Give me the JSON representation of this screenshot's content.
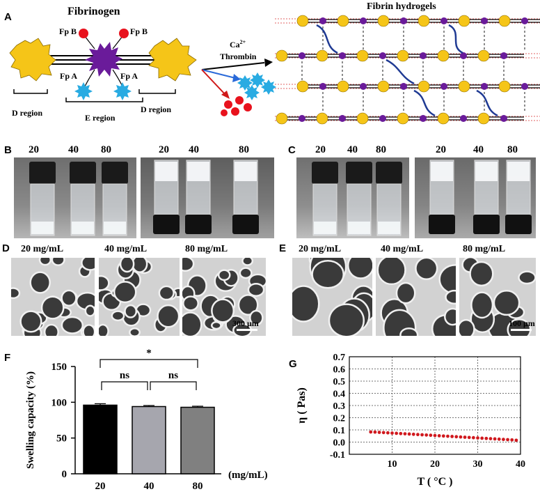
{
  "panels": {
    "A": "A",
    "B": "B",
    "C": "C",
    "D": "D",
    "E": "E",
    "F": "F",
    "G": "G"
  },
  "schematic": {
    "fibrinogen_title": "Fibrinogen",
    "fpb_left": "Fp B",
    "fpb_right": "Fp B",
    "fpa_left": "Fp A",
    "fpa_right": "Fp A",
    "d_region_left": "D region",
    "e_region": "E region",
    "d_region_right": "D region",
    "ca": "Ca",
    "ca_sup": "2+",
    "thrombin": "Thrombin",
    "hydrogel_title": "Fibrin hydrogels",
    "colors": {
      "d_domain": "#f5c518",
      "e_domain": "#6a1b9a",
      "fpb": "#e8121d",
      "fpa": "#29abe2",
      "crosslink": "#1f3a93",
      "rail": "#e06060"
    }
  },
  "vials_b": {
    "left": [
      "20",
      "40",
      "80"
    ],
    "right": [
      "20",
      "40",
      "80"
    ]
  },
  "vials_c": {
    "left": [
      "20",
      "40",
      "80"
    ],
    "right": [
      "20",
      "40",
      "80"
    ]
  },
  "sem_d": {
    "labels": [
      "20 mg/mL",
      "40 mg/mL",
      "80 mg/mL"
    ],
    "scalebar": "300 μm"
  },
  "sem_e": {
    "labels": [
      "20 mg/mL",
      "40 mg/mL",
      "80 mg/mL"
    ],
    "scalebar": "100 μm"
  },
  "chart_data": [
    {
      "type": "bar",
      "panel": "F",
      "categories": [
        "20",
        "40",
        "80"
      ],
      "values": [
        96,
        94,
        93
      ],
      "errors": [
        2,
        1.5,
        1.5
      ],
      "colors": [
        "#000000",
        "#a6a6ae",
        "#808080"
      ],
      "ylabel": "Swelling capacity (%)",
      "xunit": "(mg/mL)",
      "ylim": [
        0,
        150
      ],
      "yticks": [
        "0",
        "50",
        "100",
        "150"
      ],
      "significance": [
        {
          "from": 0,
          "to": 1,
          "label": "ns"
        },
        {
          "from": 1,
          "to": 2,
          "label": "ns"
        },
        {
          "from": 0,
          "to": 2,
          "label": "*"
        }
      ]
    },
    {
      "type": "scatter",
      "panel": "G",
      "xlabel": "T ( °C )",
      "ylabel": "η ( Pas)",
      "xlim": [
        0,
        40
      ],
      "ylim": [
        -0.1,
        0.7
      ],
      "xticks": [
        "10",
        "20",
        "30",
        "40"
      ],
      "yticks": [
        "-0.1",
        "0.0",
        "0.1",
        "0.2",
        "0.3",
        "0.4",
        "0.5",
        "0.6",
        "0.7"
      ],
      "grid": true,
      "color": "#d0191e",
      "x": [
        5,
        6,
        7,
        8,
        9,
        10,
        11,
        12,
        13,
        14,
        15,
        16,
        17,
        18,
        19,
        20,
        21,
        22,
        23,
        24,
        25,
        26,
        27,
        28,
        29,
        30,
        31,
        32,
        33,
        34,
        35,
        36,
        37,
        38,
        39
      ],
      "y": [
        0.083,
        0.082,
        0.08,
        0.078,
        0.076,
        0.074,
        0.072,
        0.07,
        0.068,
        0.066,
        0.064,
        0.062,
        0.06,
        0.058,
        0.056,
        0.054,
        0.052,
        0.05,
        0.048,
        0.046,
        0.044,
        0.042,
        0.04,
        0.038,
        0.036,
        0.034,
        0.032,
        0.03,
        0.028,
        0.026,
        0.024,
        0.022,
        0.02,
        0.018,
        0.015
      ]
    }
  ]
}
